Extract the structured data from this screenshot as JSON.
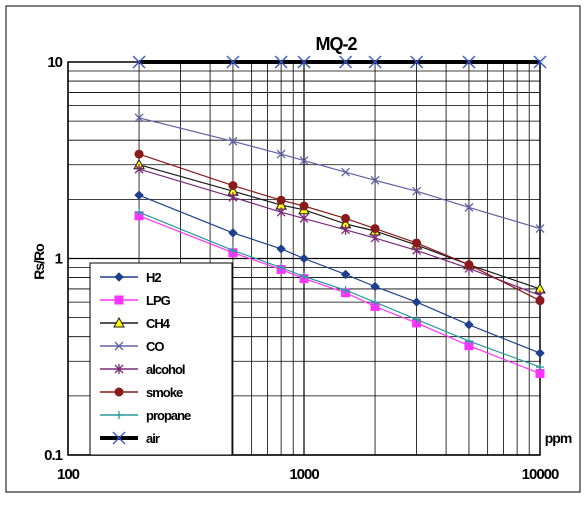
{
  "chart_data": {
    "type": "line",
    "title": "MQ-2",
    "xlabel": "ppm",
    "ylabel": "Rs/Ro",
    "x_scale": "log",
    "y_scale": "log",
    "xlim": [
      100,
      10000
    ],
    "ylim": [
      0.1,
      10
    ],
    "x_tick_labels": [
      {
        "value": 100,
        "label": "100"
      },
      {
        "value": 1000,
        "label": "1000"
      },
      {
        "value": 10000,
        "label": "10000"
      }
    ],
    "y_tick_labels": [
      {
        "value": 0.1,
        "label": "0.1"
      },
      {
        "value": 1,
        "label": "1"
      },
      {
        "value": 10,
        "label": "10"
      }
    ],
    "grid": true,
    "legend_position": "bottom-left",
    "series": [
      {
        "name": "H2",
        "color": "#1f3f8f",
        "marker": "diamond",
        "x": [
          200,
          500,
          800,
          1000,
          1500,
          2000,
          3000,
          5000,
          10000
        ],
        "y": [
          2.1,
          1.35,
          1.12,
          1.0,
          0.83,
          0.72,
          0.6,
          0.46,
          0.33
        ]
      },
      {
        "name": "LPG",
        "color": "#ff33ff",
        "marker": "square",
        "x": [
          200,
          500,
          800,
          1000,
          1500,
          2000,
          3000,
          5000,
          10000
        ],
        "y": [
          1.65,
          1.07,
          0.88,
          0.79,
          0.67,
          0.57,
          0.47,
          0.36,
          0.26
        ]
      },
      {
        "name": "CH4",
        "color": "#1a1a1a",
        "marker": "triangle",
        "fill": "#ffff00",
        "x": [
          200,
          500,
          800,
          1000,
          1500,
          2000,
          3000,
          5000,
          10000
        ],
        "y": [
          3.0,
          2.2,
          1.87,
          1.77,
          1.5,
          1.38,
          1.17,
          0.93,
          0.7
        ]
      },
      {
        "name": "CO",
        "color": "#6060a8",
        "marker": "x",
        "x": [
          200,
          500,
          800,
          1000,
          1500,
          2000,
          3000,
          5000,
          10000
        ],
        "y": [
          5.2,
          3.95,
          3.4,
          3.15,
          2.75,
          2.5,
          2.2,
          1.82,
          1.42
        ]
      },
      {
        "name": "alcohol",
        "color": "#7b2a7b",
        "marker": "star",
        "x": [
          200,
          500,
          800,
          1000,
          1500,
          2000,
          3000,
          5000,
          10000
        ],
        "y": [
          2.85,
          2.05,
          1.72,
          1.6,
          1.4,
          1.27,
          1.1,
          0.89,
          0.65
        ]
      },
      {
        "name": "smoke",
        "color": "#8b1a1a",
        "marker": "circle",
        "x": [
          200,
          500,
          800,
          1000,
          1500,
          2000,
          3000,
          5000,
          10000
        ],
        "y": [
          3.4,
          2.35,
          1.98,
          1.85,
          1.6,
          1.42,
          1.2,
          0.93,
          0.61
        ]
      },
      {
        "name": "propane",
        "color": "#2a9a9a",
        "marker": "plus",
        "x": [
          200,
          500,
          800,
          1000,
          1500,
          2000,
          3000,
          5000,
          10000
        ],
        "y": [
          1.72,
          1.1,
          0.9,
          0.81,
          0.69,
          0.6,
          0.49,
          0.38,
          0.28
        ]
      },
      {
        "name": "air",
        "color": "#000000",
        "marker": "x",
        "line_width": 4,
        "x": [
          200,
          500,
          800,
          1000,
          1500,
          2000,
          3000,
          5000,
          10000
        ],
        "y": [
          10,
          10,
          10,
          10,
          10,
          10,
          10,
          10,
          10
        ]
      }
    ]
  }
}
